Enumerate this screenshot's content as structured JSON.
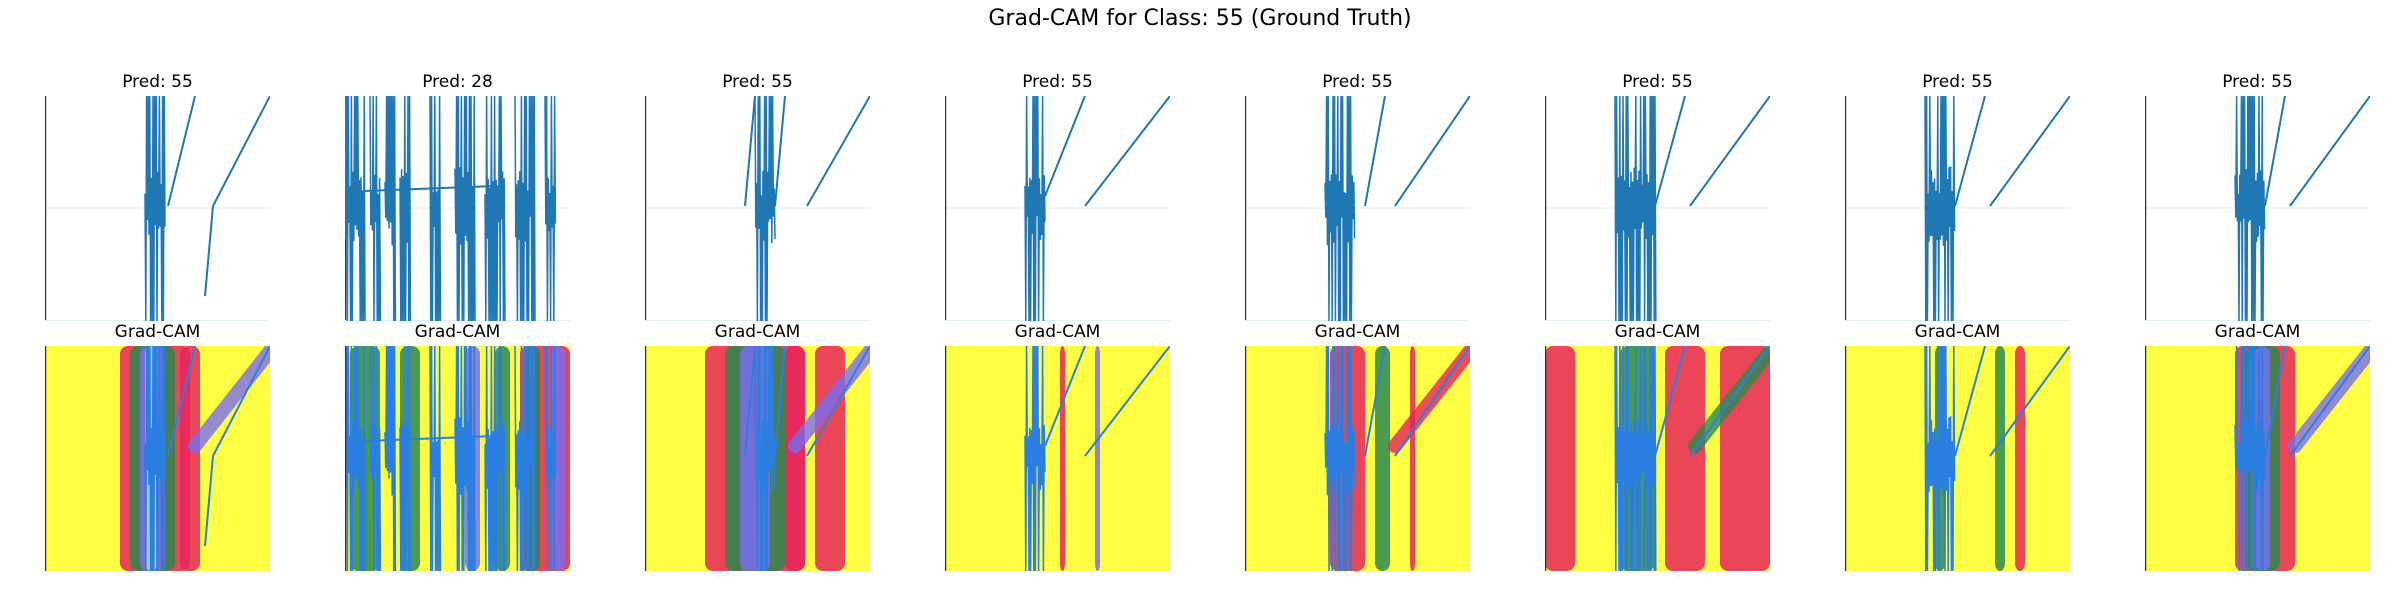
{
  "figure": {
    "title": "Grad-CAM for Class: 55 (Ground Truth)"
  },
  "chart_data": [
    {
      "type": "line",
      "title": "Pred: 55",
      "bursts": [
        [
          100,
          120
        ]
      ],
      "lines": [
        [
          123,
          110,
          150,
          0
        ],
        [
          160,
          200,
          168,
          110
        ],
        [
          168,
          110,
          225,
          0
        ]
      ],
      "cam": [
        {
          "kind": "band",
          "x": [
            75,
            145
          ],
          "color": "#e8245c"
        },
        {
          "kind": "band",
          "x": [
            85,
            130
          ],
          "color": "#2b8a4f"
        },
        {
          "kind": "band",
          "x": [
            95,
            120
          ],
          "color": "#7a6df0"
        },
        {
          "kind": "band",
          "x": [
            100,
            112
          ],
          "color": "#a8e0c8"
        },
        {
          "kind": "band",
          "x": [
            135,
            155
          ],
          "color": "#e8245c"
        },
        {
          "kind": "diag",
          "color": "#7a6df0"
        }
      ]
    },
    {
      "type": "line",
      "title": "Pred: 28",
      "bursts": [
        [
          0,
          20
        ],
        [
          25,
          35
        ],
        [
          40,
          50
        ],
        [
          55,
          65
        ],
        [
          85,
          95
        ],
        [
          110,
          130
        ],
        [
          140,
          160
        ],
        [
          170,
          190
        ],
        [
          200,
          210
        ],
        [
          230,
          240
        ],
        [
          255,
          270
        ],
        [
          275,
          285
        ]
      ],
      "lines": [
        [
          20,
          95,
          150,
          90
        ]
      ],
      "cam": [
        {
          "kind": "band",
          "x": [
            175,
            225
          ],
          "color": "#e8245c"
        },
        {
          "kind": "band",
          "x": [
            5,
            35
          ],
          "color": "#2b8a4f"
        },
        {
          "kind": "band",
          "x": [
            55,
            75
          ],
          "color": "#2b8a4f"
        },
        {
          "kind": "band",
          "x": [
            120,
            135
          ],
          "color": "#7a6df0"
        },
        {
          "kind": "band",
          "x": [
            150,
            165
          ],
          "color": "#2b8a4f"
        },
        {
          "kind": "band",
          "x": [
            180,
            195
          ],
          "color": "#2b8a4f"
        },
        {
          "kind": "band",
          "x": [
            205,
            220
          ],
          "color": "#7a6df0"
        },
        {
          "kind": "band",
          "x": [
            230,
            240
          ],
          "color": "#2b8a4f"
        },
        {
          "kind": "band",
          "x": [
            255,
            270
          ],
          "color": "#2b8a4f"
        },
        {
          "kind": "band",
          "x": [
            275,
            285
          ],
          "color": "#e8245c"
        }
      ]
    },
    {
      "type": "line",
      "title": "Pred: 55",
      "bursts": [
        [
          110,
          130
        ]
      ],
      "lines": [
        [
          100,
          110,
          110,
          0
        ],
        [
          130,
          110,
          140,
          0
        ],
        [
          162,
          110,
          225,
          0
        ]
      ],
      "cam": [
        {
          "kind": "band",
          "x": [
            60,
            160
          ],
          "color": "#e8245c"
        },
        {
          "kind": "band",
          "x": [
            80,
            140
          ],
          "color": "#2b8a4f"
        },
        {
          "kind": "band",
          "x": [
            95,
            125
          ],
          "color": "#7a6df0"
        },
        {
          "kind": "band",
          "x": [
            140,
            160
          ],
          "color": "#e8245c"
        },
        {
          "kind": "band",
          "x": [
            170,
            200
          ],
          "color": "#e8245c"
        },
        {
          "kind": "diag",
          "color": "#7a6df0"
        }
      ]
    },
    {
      "type": "line",
      "title": "Pred: 55",
      "bursts": [
        [
          80,
          100
        ]
      ],
      "lines": [
        [
          100,
          100,
          140,
          0
        ],
        [
          140,
          110,
          225,
          0
        ]
      ],
      "cam": [
        {
          "kind": "band",
          "x": [
            115,
            120
          ],
          "color": "#e8245c"
        },
        {
          "kind": "band",
          "x": [
            150,
            155
          ],
          "color": "#7a6df0"
        }
      ]
    },
    {
      "type": "line",
      "title": "Pred: 55",
      "bursts": [
        [
          80,
          110
        ]
      ],
      "lines": [
        [
          120,
          110,
          140,
          0
        ],
        [
          150,
          110,
          225,
          0
        ]
      ],
      "cam": [
        {
          "kind": "band",
          "x": [
            85,
            120
          ],
          "color": "#e8245c"
        },
        {
          "kind": "band",
          "x": [
            130,
            145
          ],
          "color": "#2b8a4f"
        },
        {
          "kind": "band",
          "x": [
            165,
            170
          ],
          "color": "#e8245c"
        },
        {
          "kind": "diag",
          "color": "#e8245c"
        }
      ]
    },
    {
      "type": "line",
      "title": "Pred: 55",
      "bursts": [
        [
          70,
          110
        ]
      ],
      "lines": [
        [
          110,
          110,
          140,
          0
        ],
        [
          145,
          110,
          225,
          0
        ]
      ],
      "cam": [
        {
          "kind": "band",
          "x": [
            0,
            30
          ],
          "color": "#e8245c"
        },
        {
          "kind": "band",
          "x": [
            175,
            225
          ],
          "color": "#e8245c"
        },
        {
          "kind": "band",
          "x": [
            75,
            110
          ],
          "color": "#2b8a4f"
        },
        {
          "kind": "band",
          "x": [
            120,
            160
          ],
          "color": "#e8245c"
        },
        {
          "kind": "diag",
          "color": "#2b8a4f"
        }
      ]
    },
    {
      "type": "line",
      "title": "Pred: 55",
      "bursts": [
        [
          80,
          110
        ]
      ],
      "lines": [
        [
          110,
          110,
          140,
          0
        ],
        [
          145,
          110,
          225,
          0
        ]
      ],
      "cam": [
        {
          "kind": "band",
          "x": [
            170,
            180
          ],
          "color": "#e8245c"
        },
        {
          "kind": "band",
          "x": [
            150,
            160
          ],
          "color": "#2b8a4f"
        },
        {
          "kind": "band",
          "x": [
            90,
            100
          ],
          "color": "#2b8a4f"
        }
      ]
    },
    {
      "type": "line",
      "title": "Pred: 55",
      "bursts": [
        [
          90,
          120
        ]
      ],
      "lines": [
        [
          120,
          110,
          140,
          0
        ],
        [
          145,
          110,
          225,
          0
        ]
      ],
      "cam": [
        {
          "kind": "band",
          "x": [
            90,
            150
          ],
          "color": "#e8245c"
        },
        {
          "kind": "band",
          "x": [
            100,
            135
          ],
          "color": "#2b8a4f"
        },
        {
          "kind": "band",
          "x": [
            110,
            125
          ],
          "color": "#7a6df0"
        },
        {
          "kind": "diag",
          "color": "#7a6df0"
        }
      ]
    }
  ],
  "cam_title": "Grad-CAM",
  "colors": {
    "line": "#1f77b4",
    "cam_bg": "#ffff44",
    "cam_line": "#2b7fe0",
    "grid": "#e0eef8",
    "axis": "#333333"
  }
}
